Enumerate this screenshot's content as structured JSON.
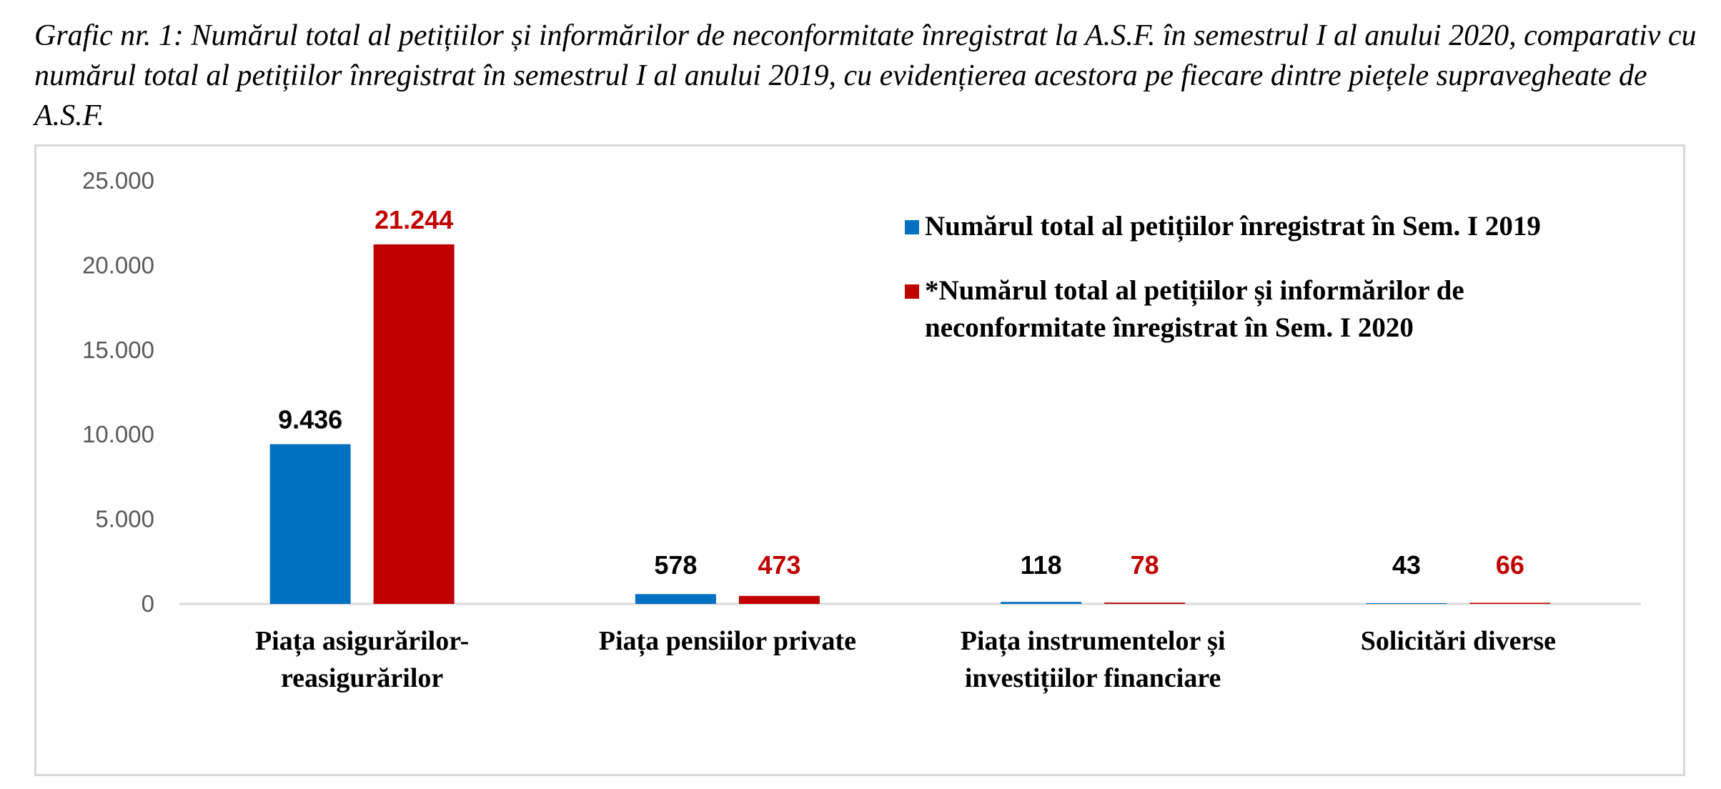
{
  "caption": {
    "label": "Grafic nr. 1:",
    "text": "Numărul total al petițiilor și informărilor de neconformitate înregistrat la A.S.F. în semestrul I al anului 2020, comparativ cu numărul total al petițiilor înregistrat în semestrul I al anului 2019, cu evidențierea acestora pe fiecare dintre piețele supravegheate de A.S.F."
  },
  "colors": {
    "series_2019": "#0070c0",
    "series_2020": "#c00000",
    "label_2019": "#000000",
    "label_2020": "#c00000",
    "axis": "#d9d9d9"
  },
  "chart_data": {
    "type": "bar",
    "categories": [
      [
        "Piața asigurărilor-",
        "reasigurărilor"
      ],
      [
        "Piața pensiilor  private"
      ],
      [
        "Piața instrumentelor  și",
        "investițiilor  financiare"
      ],
      [
        "Solicitări diverse"
      ]
    ],
    "series": [
      {
        "name": "Numărul total al petițiilor  înregistrat  în  Sem. I 2019",
        "values": [
          9436,
          578,
          118,
          43
        ],
        "labels": [
          "9.436",
          "578",
          "118",
          "43"
        ]
      },
      {
        "name": "*Numărul total al petițiilor  și informărilor  de neconformitate înregistrat  în  Sem. I 2020",
        "name_lines": [
          "*Numărul total al petițiilor  și informărilor  de",
          "neconformitate înregistrat  în  Sem. I 2020"
        ],
        "values": [
          21244,
          473,
          78,
          66
        ],
        "labels": [
          "21.244",
          "473",
          "78",
          "66"
        ]
      }
    ],
    "ylim": [
      0,
      25000
    ],
    "yticks": [
      0,
      5000,
      10000,
      15000,
      20000,
      25000
    ],
    "ytick_labels": [
      "0",
      "5.000",
      "10.000",
      "15.000",
      "20.000",
      "25.000"
    ],
    "grid": false,
    "legend_position": "top-right"
  }
}
